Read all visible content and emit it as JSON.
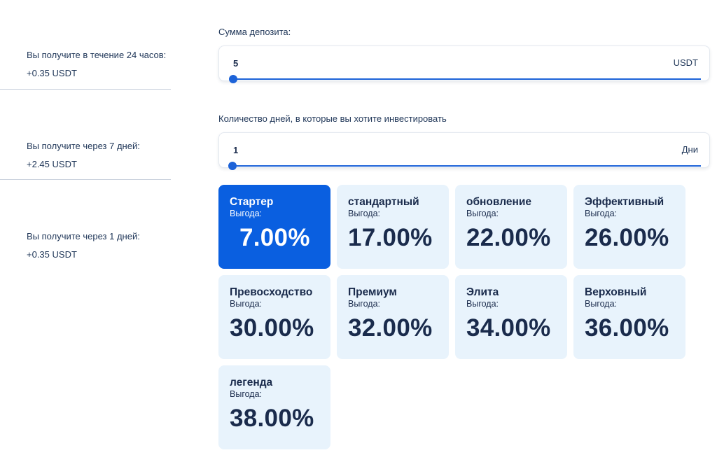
{
  "results": [
    {
      "label": "Вы получите в течение 24 часов:",
      "value": "+0.35 USDT"
    },
    {
      "label": "Вы получите через 7 дней:",
      "value": "+2.45 USDT"
    },
    {
      "label": "Вы получите через 1 дней:",
      "value": "+0.35 USDT"
    }
  ],
  "deposit": {
    "label": "Сумма депозита:",
    "value": "5",
    "unit": "USDT"
  },
  "days": {
    "label": "Количество дней, в которые вы хотите инвестировать",
    "value": "1",
    "unit": "Дни"
  },
  "plans": [
    {
      "name": "Стартер",
      "label": "Выгода:",
      "pct": "7.00%",
      "active": true
    },
    {
      "name": "стандартный",
      "label": "Выгода:",
      "pct": "17.00%"
    },
    {
      "name": "обновление",
      "label": "Выгода:",
      "pct": "22.00%"
    },
    {
      "name": "Эффективный",
      "label": "Выгода:",
      "pct": "26.00%"
    },
    {
      "name": "Превосходство",
      "label": "Выгода:",
      "pct": "30.00%"
    },
    {
      "name": "Премиум",
      "label": "Выгода:",
      "pct": "32.00%"
    },
    {
      "name": "Элита",
      "label": "Выгода:",
      "pct": "34.00%"
    },
    {
      "name": "Верховный",
      "label": "Выгода:",
      "pct": "36.00%"
    },
    {
      "name": "легенда",
      "label": "Выгода:",
      "pct": "38.00%"
    }
  ],
  "colors": {
    "accent": "#0a5fe0",
    "card": "#e8f3fc",
    "text": "#1a2b4c"
  }
}
